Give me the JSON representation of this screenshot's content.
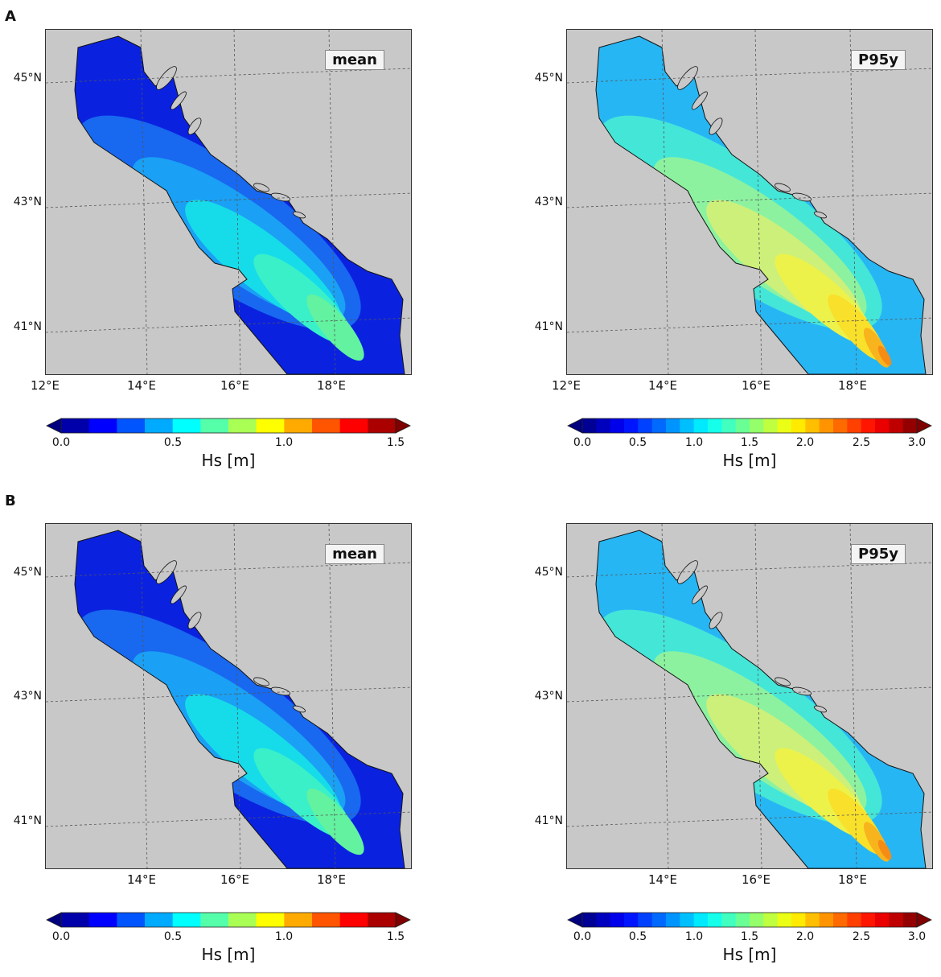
{
  "figure": {
    "rows": [
      {
        "label": "A",
        "panels": [
          {
            "tag": "mean",
            "scheme": "mean",
            "lat_labels": [
              "45°N",
              "43°N",
              "41°N"
            ],
            "lon_labels": [
              "12°E",
              "14°E",
              "16°E",
              "18°E"
            ],
            "colorbar": {
              "ticks": [
                "0.0",
                "0.5",
                "1.0",
                "1.5"
              ],
              "label": "Hs [m]",
              "range": [
                0,
                1.5
              ]
            }
          },
          {
            "tag": "P95y",
            "scheme": "p95",
            "lat_labels": [
              "45°N",
              "43°N",
              "41°N"
            ],
            "lon_labels": [
              "12°E",
              "14°E",
              "16°E",
              "18°E"
            ],
            "colorbar": {
              "ticks": [
                "0.0",
                "0.5",
                "1.0",
                "1.5",
                "2.0",
                "2.5",
                "3.0"
              ],
              "label": "Hs [m]",
              "range": [
                0,
                3.0
              ]
            }
          }
        ]
      },
      {
        "label": "B",
        "panels": [
          {
            "tag": "mean",
            "scheme": "mean",
            "lat_labels": [
              "45°N",
              "43°N",
              "41°N"
            ],
            "lon_labels": [
              "14°E",
              "16°E",
              "18°E"
            ],
            "colorbar": {
              "ticks": [
                "0.0",
                "0.5",
                "1.0",
                "1.5"
              ],
              "label": "Hs [m]",
              "range": [
                0,
                1.5
              ]
            }
          },
          {
            "tag": "P95y",
            "scheme": "p95",
            "lat_labels": [
              "45°N",
              "43°N",
              "41°N"
            ],
            "lon_labels": [
              "14°E",
              "16°E",
              "18°E"
            ],
            "colorbar": {
              "ticks": [
                "0.0",
                "0.5",
                "1.0",
                "1.5",
                "2.0",
                "2.5",
                "3.0"
              ],
              "label": "Hs [m]",
              "range": [
                0,
                3.0
              ]
            }
          }
        ]
      }
    ],
    "colors": {
      "land": "#c8c8c8",
      "mean_levels": [
        "#0a22e0",
        "#1868f0",
        "#1aa0f4",
        "#16dcea",
        "#3af0c8",
        "#62f2a0"
      ],
      "p95_levels": [
        "#27b6f4",
        "#44e6d8",
        "#8cf2a0",
        "#cdf07a",
        "#ecf24a",
        "#f9e02a",
        "#f8b41c",
        "#f68c14"
      ]
    }
  }
}
